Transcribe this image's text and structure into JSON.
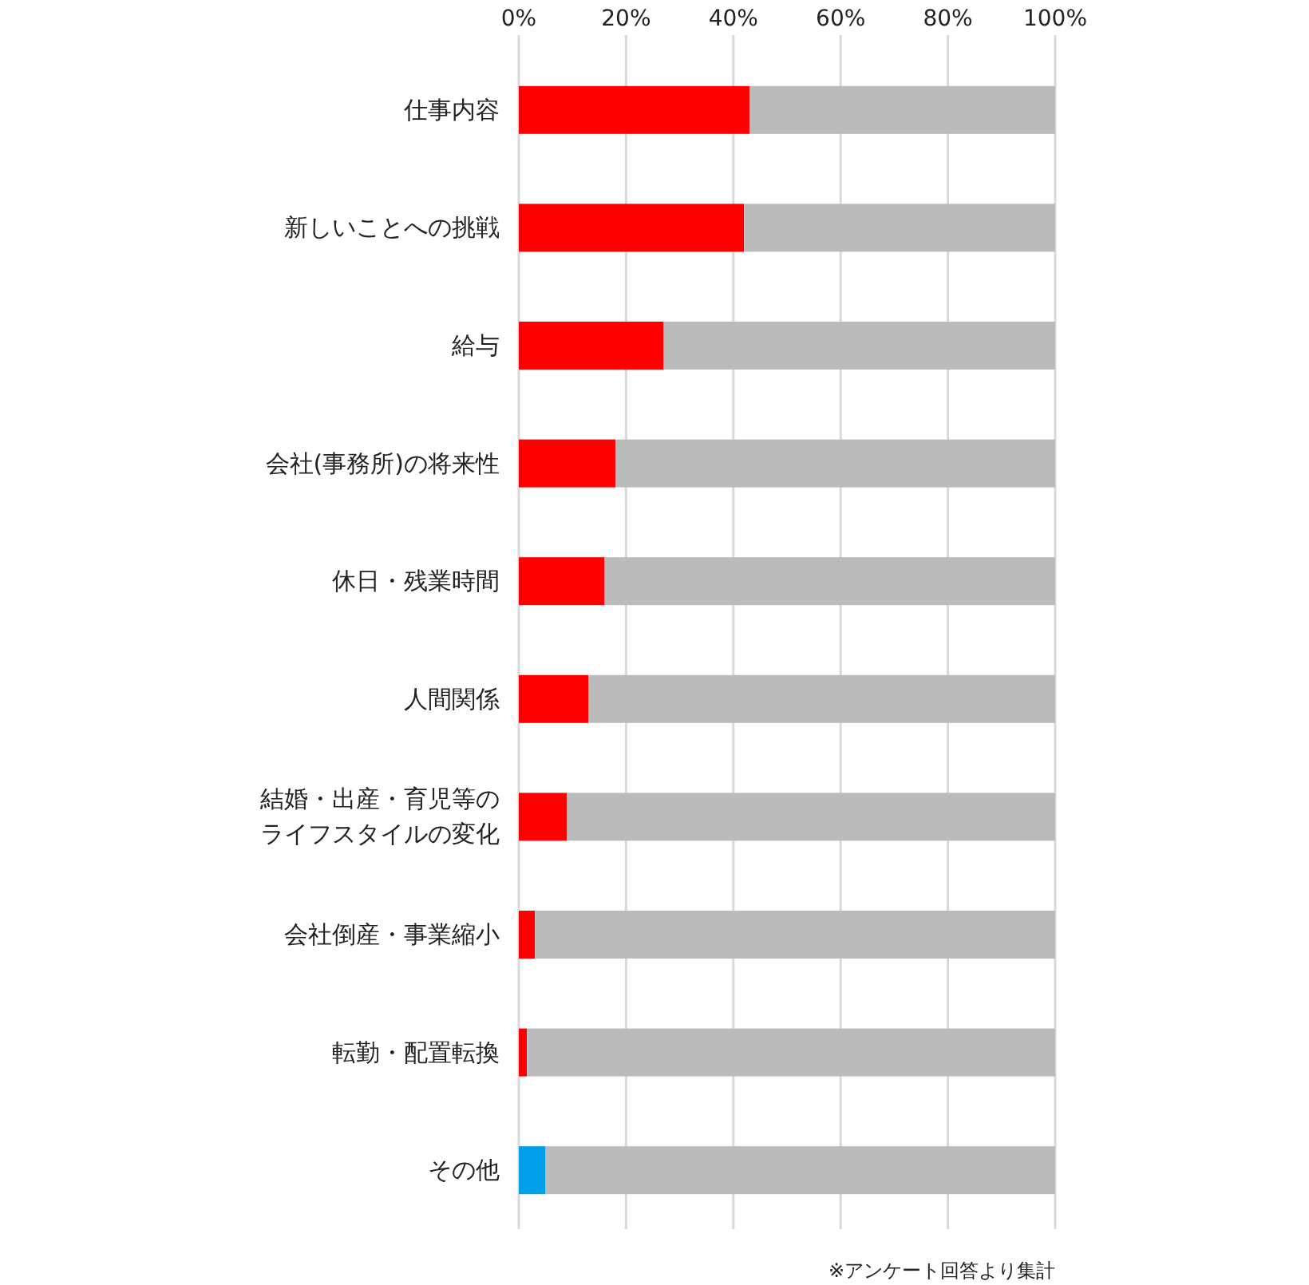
{
  "chart_data": {
    "type": "bar",
    "orientation": "horizontal",
    "stacked": true,
    "categories": [
      "仕事内容",
      "新しいことへの挑戦",
      "給与",
      "会社(事務所)の将来性",
      "休日・残業時間",
      "人間関係",
      "結婚・出産・育児等のライフスタイルの変化",
      "会社倒産・事業縮小",
      "転勤・配置転換",
      "その他"
    ],
    "series": [
      {
        "colors": [
          "#ff0000",
          "#ff0000",
          "#ff0000",
          "#ff0000",
          "#ff0000",
          "#ff0000",
          "#ff0000",
          "#ff0000",
          "#ff0000",
          "#00a0e9"
        ],
        "values": [
          43,
          42,
          27,
          18,
          16,
          13,
          9,
          3,
          1.5,
          5
        ]
      },
      {
        "color": "#bbbbbb",
        "values": [
          57,
          58,
          73,
          82,
          84,
          87,
          91,
          97,
          98.5,
          95
        ]
      }
    ],
    "xlim": [
      0,
      100
    ],
    "xticks": [
      {
        "value": 0,
        "label": "0%"
      },
      {
        "value": 20,
        "label": "20%"
      },
      {
        "value": 40,
        "label": "40%"
      },
      {
        "value": 60,
        "label": "60%"
      },
      {
        "value": 80,
        "label": "80%"
      },
      {
        "value": 100,
        "label": "100%"
      }
    ],
    "grid": "x",
    "annotations": [
      "※アンケート回答より集計"
    ]
  }
}
